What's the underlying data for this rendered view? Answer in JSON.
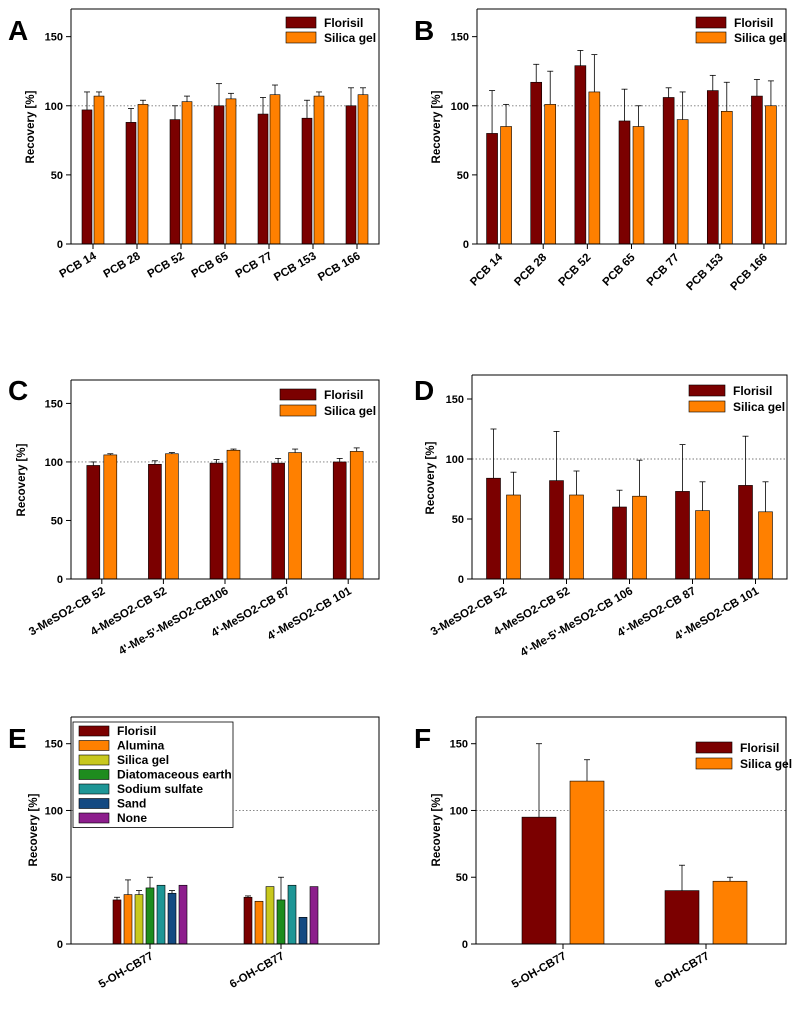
{
  "chart_data": [
    {
      "panel": "A",
      "type": "bar",
      "categories": [
        "PCB 14",
        "PCB 28",
        "PCB 52",
        "PCB 65",
        "PCB 77",
        "PCB 153",
        "PCB 166"
      ],
      "series": [
        {
          "name": "Florisil",
          "color": "#7b0000",
          "values": [
            97,
            88,
            90,
            100,
            94,
            91,
            100
          ],
          "errors": [
            13,
            10,
            10,
            16,
            12,
            13,
            13
          ]
        },
        {
          "name": "Silica gel",
          "color": "#ff8000",
          "values": [
            107,
            101,
            103,
            105,
            108,
            107,
            108
          ],
          "errors": [
            3,
            3,
            4,
            4,
            7,
            3,
            5
          ]
        }
      ],
      "xlabel": "",
      "ylabel": "Recovery [%]",
      "ylim": [
        0,
        170
      ],
      "yticks": [
        0,
        50,
        100,
        150
      ],
      "reference_line": 100
    },
    {
      "panel": "B",
      "type": "bar",
      "categories": [
        "PCB 14",
        "PCB 28",
        "PCB 52",
        "PCB 65",
        "PCB 77",
        "PCB 153",
        "PCB 166"
      ],
      "series": [
        {
          "name": "Florisil",
          "color": "#7b0000",
          "values": [
            80,
            117,
            129,
            89,
            106,
            111,
            107
          ],
          "errors": [
            31,
            13,
            11,
            23,
            7,
            11,
            12
          ]
        },
        {
          "name": "Silica gel",
          "color": "#ff8000",
          "values": [
            85,
            101,
            110,
            85,
            90,
            96,
            100
          ],
          "errors": [
            16,
            24,
            27,
            15,
            20,
            21,
            18
          ]
        }
      ],
      "xlabel": "",
      "ylabel": "Recovery [%]",
      "ylim": [
        0,
        170
      ],
      "yticks": [
        0,
        50,
        100,
        150
      ],
      "reference_line": 100
    },
    {
      "panel": "C",
      "type": "bar",
      "categories": [
        "3-MeSO2-CB 52",
        "4-MeSO2-CB 52",
        "4'-Me-5'-MeSO2-CB106",
        "4'-MeSO2-CB 87",
        "4'-MeSO2-CB 101"
      ],
      "series": [
        {
          "name": "Florisil",
          "color": "#7b0000",
          "values": [
            97,
            98,
            99,
            99,
            100
          ],
          "errors": [
            3,
            3,
            3,
            4,
            3
          ]
        },
        {
          "name": "Silica gel",
          "color": "#ff8000",
          "values": [
            106,
            107,
            110,
            108,
            109
          ],
          "errors": [
            1,
            1,
            1,
            3,
            3
          ]
        }
      ],
      "xlabel": "",
      "ylabel": "Recovery [%]",
      "ylim": [
        0,
        170
      ],
      "yticks": [
        0,
        50,
        100,
        150
      ],
      "reference_line": 100
    },
    {
      "panel": "D",
      "type": "bar",
      "categories": [
        "3-MeSO2-CB 52",
        "4-MeSO2-CB 52",
        "4'-Me-5'-MeSO2-CB 106",
        "4'-MeSO2-CB 87",
        "4'-MeSO2-CB 101"
      ],
      "series": [
        {
          "name": "Florisil",
          "color": "#7b0000",
          "values": [
            84,
            82,
            60,
            73,
            78
          ],
          "errors": [
            41,
            41,
            14,
            39,
            41
          ]
        },
        {
          "name": "Silica gel",
          "color": "#ff8000",
          "values": [
            70,
            70,
            69,
            57,
            56
          ],
          "errors": [
            19,
            20,
            30,
            24,
            25
          ]
        }
      ],
      "xlabel": "",
      "ylabel": "Recovery [%]",
      "ylim": [
        0,
        170
      ],
      "yticks": [
        0,
        50,
        100,
        150
      ],
      "reference_line": 100
    },
    {
      "panel": "E",
      "type": "bar",
      "categories": [
        "5-OH-CB77",
        "6-OH-CB77"
      ],
      "series": [
        {
          "name": "Florisil",
          "color": "#7b0000",
          "values": [
            33,
            35
          ],
          "errors": [
            2,
            1
          ]
        },
        {
          "name": "Alumina",
          "color": "#ff8000",
          "values": [
            37,
            32
          ],
          "errors": [
            11,
            0
          ]
        },
        {
          "name": "Silica gel",
          "color": "#c8c81e",
          "values": [
            37,
            43
          ],
          "errors": [
            3,
            0
          ]
        },
        {
          "name": "Diatomaceous earth",
          "color": "#1e8c1e",
          "values": [
            42,
            33
          ],
          "errors": [
            8,
            17
          ]
        },
        {
          "name": "Sodium sulfate",
          "color": "#1e9696",
          "values": [
            44,
            44
          ],
          "errors": [
            0,
            0
          ]
        },
        {
          "name": "Sand",
          "color": "#144a82",
          "values": [
            38,
            20
          ],
          "errors": [
            2,
            0
          ]
        },
        {
          "name": "None",
          "color": "#8c1e8c",
          "values": [
            44,
            43
          ],
          "errors": [
            0,
            0
          ]
        }
      ],
      "xlabel": "",
      "ylabel": "Recovery [%]",
      "ylim": [
        0,
        170
      ],
      "yticks": [
        0,
        50,
        100,
        150
      ],
      "reference_line": 100
    },
    {
      "panel": "F",
      "type": "bar",
      "categories": [
        "5-OH-CB77",
        "6-OH-CB77"
      ],
      "series": [
        {
          "name": "Florisil",
          "color": "#7b0000",
          "values": [
            95,
            40
          ],
          "errors": [
            55,
            19
          ]
        },
        {
          "name": "Silica gel",
          "color": "#ff8000",
          "values": [
            122,
            47
          ],
          "errors": [
            16,
            3
          ]
        }
      ],
      "xlabel": "",
      "ylabel": "Recovery [%]",
      "ylim": [
        0,
        170
      ],
      "yticks": [
        0,
        50,
        100,
        150
      ],
      "reference_line": 100
    }
  ]
}
